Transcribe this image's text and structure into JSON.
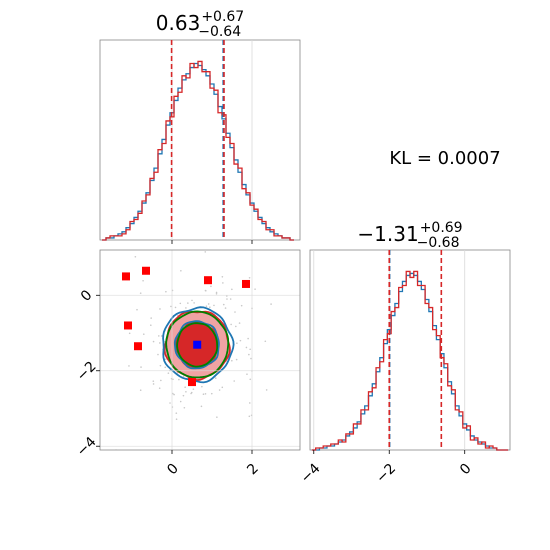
{
  "chart_data": {
    "type": "corner",
    "annotation": "KL = 0.0007",
    "param1": {
      "title_main": "0.63",
      "title_plus": "+0.67",
      "title_minus": "−0.64",
      "median": 0.63,
      "quantiles_red": [
        -0.01,
        1.3
      ],
      "quantiles_blue": [
        1.28
      ],
      "xlim": [
        -1.8,
        3.2
      ],
      "ticks": [
        0,
        2
      ],
      "tick_labels": [
        "0",
        "2"
      ]
    },
    "param2": {
      "title_main": "−1.31",
      "title_plus": "+0.69",
      "title_minus": "−0.68",
      "median": -1.31,
      "quantiles_red": [
        -2.0,
        -0.62
      ],
      "quantiles_blue": [
        -1.99
      ],
      "xlim": [
        -4.1,
        1.2
      ],
      "ticks": [
        -4,
        -2,
        0
      ],
      "tick_labels": [
        "−4",
        "−2",
        "0"
      ]
    },
    "scatter": {
      "xlim": [
        -1.8,
        3.2
      ],
      "ylim": [
        -4.1,
        1.2
      ],
      "yticks": [
        0,
        -2,
        -4
      ],
      "ytick_labels": [
        "0",
        "−2",
        "−4"
      ],
      "xticks": [
        0,
        2
      ],
      "xtick_labels": [
        "0",
        "2"
      ],
      "center": [
        0.63,
        -1.31
      ],
      "red_points": [
        [
          -1.15,
          0.5
        ],
        [
          -0.65,
          0.65
        ],
        [
          0.9,
          0.4
        ],
        [
          -1.1,
          -0.8
        ],
        [
          -0.85,
          -1.35
        ],
        [
          0.5,
          -2.3
        ],
        [
          1.85,
          0.3
        ]
      ],
      "blue_point": [
        0.63,
        -1.31
      ],
      "contours": [
        {
          "color": "#d62728",
          "rx": 1.6,
          "ry": 1.8,
          "fill": "#f0a3a3"
        },
        {
          "color": "#1f77b4",
          "rx": 1.75,
          "ry": 1.95
        },
        {
          "color": "#008000",
          "rx": 1.55,
          "ry": 1.75
        },
        {
          "color": "#d62728",
          "rx": 1.05,
          "ry": 1.2,
          "fill": "#d62728"
        },
        {
          "color": "#1f77b4",
          "rx": 1.1,
          "ry": 1.25
        },
        {
          "color": "#008000",
          "rx": 1.0,
          "ry": 1.15
        }
      ]
    },
    "hist1": {
      "x": [
        -1.7,
        -1.6,
        -1.5,
        -1.4,
        -1.3,
        -1.2,
        -1.1,
        -1.0,
        -0.9,
        -0.8,
        -0.7,
        -0.6,
        -0.5,
        -0.4,
        -0.3,
        -0.2,
        -0.1,
        0.0,
        0.1,
        0.2,
        0.3,
        0.4,
        0.5,
        0.6,
        0.7,
        0.8,
        0.9,
        1.0,
        1.1,
        1.2,
        1.3,
        1.4,
        1.5,
        1.6,
        1.7,
        1.8,
        1.9,
        2.0,
        2.1,
        2.2,
        2.3,
        2.4,
        2.5,
        2.6,
        2.7,
        2.8,
        2.9,
        3.0
      ],
      "blue": [
        0,
        1,
        1,
        2,
        3,
        4,
        6,
        8,
        11,
        14,
        18,
        23,
        29,
        35,
        42,
        49,
        56,
        62,
        68,
        74,
        78,
        81,
        84,
        86,
        85,
        83,
        80,
        76,
        71,
        65,
        59,
        52,
        45,
        39,
        33,
        27,
        22,
        18,
        14,
        11,
        8,
        6,
        4,
        3,
        2,
        1,
        1,
        0
      ],
      "red": [
        0,
        1,
        2,
        2,
        2,
        3,
        5,
        9,
        10,
        13,
        19,
        22,
        30,
        33,
        44,
        47,
        58,
        60,
        70,
        72,
        80,
        79,
        86,
        84,
        87,
        82,
        82,
        74,
        73,
        62,
        61,
        50,
        47,
        37,
        35,
        25,
        23,
        17,
        15,
        10,
        9,
        5,
        5,
        2,
        2,
        1,
        1,
        0
      ]
    },
    "hist2": {
      "x": [
        -4.0,
        -3.9,
        -3.8,
        -3.7,
        -3.6,
        -3.5,
        -3.4,
        -3.3,
        -3.2,
        -3.1,
        -3.0,
        -2.9,
        -2.8,
        -2.7,
        -2.6,
        -2.5,
        -2.4,
        -2.3,
        -2.2,
        -2.1,
        -2.0,
        -1.9,
        -1.8,
        -1.7,
        -1.6,
        -1.5,
        -1.4,
        -1.3,
        -1.2,
        -1.1,
        -1.0,
        -0.9,
        -0.8,
        -0.7,
        -0.6,
        -0.5,
        -0.4,
        -0.3,
        -0.2,
        -0.1,
        0.0,
        0.1,
        0.2,
        0.3,
        0.4,
        0.5,
        0.6,
        0.7,
        0.8,
        0.9,
        1.0,
        1.1
      ],
      "blue": [
        0,
        0,
        1,
        1,
        2,
        2,
        3,
        4,
        5,
        7,
        9,
        11,
        14,
        18,
        22,
        27,
        33,
        39,
        46,
        53,
        60,
        67,
        73,
        79,
        84,
        87,
        88,
        87,
        84,
        80,
        75,
        69,
        62,
        55,
        48,
        41,
        34,
        28,
        22,
        17,
        13,
        10,
        7,
        5,
        4,
        3,
        2,
        1,
        1,
        0,
        0,
        0
      ],
      "red": [
        0,
        1,
        1,
        2,
        2,
        3,
        3,
        5,
        4,
        8,
        8,
        13,
        13,
        20,
        20,
        29,
        31,
        41,
        44,
        55,
        58,
        69,
        71,
        81,
        82,
        89,
        86,
        89,
        82,
        82,
        73,
        71,
        60,
        57,
        46,
        43,
        32,
        30,
        20,
        19,
        11,
        12,
        5,
        6,
        3,
        4,
        1,
        2,
        1,
        0,
        0,
        0
      ]
    }
  }
}
